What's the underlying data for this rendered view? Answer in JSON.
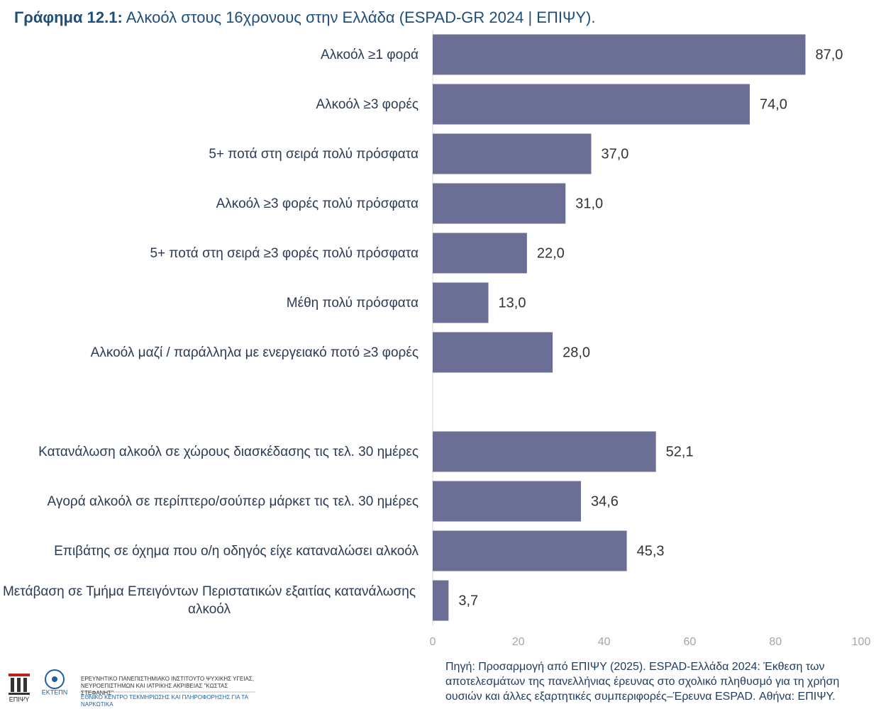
{
  "chart_data": {
    "type": "hbar",
    "title_label": "Γράφημα 12.1:",
    "title": "Αλκοόλ στους 16χρονους στην Ελλάδα (ESPAD-GR 2024 | ΕΠΙΨΥ).",
    "categories": [
      "Αλκοόλ ≥1 φορά",
      "Αλκοόλ ≥3 φορές",
      "5+ ποτά στη σειρά πολύ πρόσφατα",
      "Αλκοόλ ≥3 φορές πολύ πρόσφατα",
      "5+ ποτά στη σειρά ≥3 φορές πολύ πρόσφατα",
      "Μέθη πολύ πρόσφατα",
      "Αλκοόλ μαζί / παράλληλα με ενεργειακό ποτό ≥3 φορές",
      null,
      "Κατανάλωση αλκοόλ σε χώρους διασκέδασης τις τελ. 30 ημέρες",
      "Αγορά αλκοόλ σε περίπτερο/σούπερ μάρκετ τις τελ. 30 ημέρες",
      "Επιβάτης σε όχημα που ο/η οδηγός είχε καταναλώσει αλκοόλ",
      "Μετάβαση σε Τμήμα Επειγόντων Περιστατικών εξαιτίας κατανάλωσης αλκοόλ"
    ],
    "values": [
      87.0,
      74.0,
      37.0,
      31.0,
      22.0,
      13.0,
      28.0,
      null,
      52.1,
      34.6,
      45.3,
      3.7
    ],
    "value_labels": [
      "87,0",
      "74,0",
      "37,0",
      "31,0",
      "22,0",
      "13,0",
      "28,0",
      null,
      "52,1",
      "34,6",
      "45,3",
      "3,7"
    ],
    "color": "#6b6f96",
    "xlim": [
      0,
      100
    ],
    "xticks": [
      0,
      20,
      40,
      60,
      80,
      100
    ],
    "grid": false
  },
  "source": "Πηγή: Προσαρμογή από ΕΠΙΨΥ (2025). ESPAD-Ελλάδα 2024: Έκθεση των αποτελεσμάτων της πανελλήνιας έρευνας στο σχολικό πληθυσμό για τη χρήση ουσιών και άλλες εξαρτητικές συμπεριφορές–Έρευνα ESPAD. Αθήνα: ΕΠΙΨΥ.",
  "footer": {
    "logo1": "ΕΠΙΨΥ",
    "logo2": "ΕΚΤΕΠΝ",
    "institute": "ΕΡΕΥΝΗΤΙΚΟ ΠΑΝΕΠΙΣΤΗΜΙΑΚΟ ΙΝΣΤΙΤΟΥΤΟ ΨΥΧΙΚΗΣ ΥΓΕΙΑΣ, ΝΕΥΡΟΕΠΙΣΤΗΜΩΝ ΚΑΙ ΙΑΤΡΙΚΗΣ ΑΚΡΙΒΕΙΑΣ \"ΚΩΣΤΑΣ ΣΤΕΦΑΝΗΣ\"",
    "centre": "ΕΘΝΙΚΟ ΚΕΝΤΡΟ ΤΕΚΜΗΡΙΩΣΗΣ ΚΑΙ ΠΛΗΡΟΦΟΡΗΣΗΣ ΓΙΑ ΤΑ ΝΑΡΚΩΤΙΚΑ"
  }
}
